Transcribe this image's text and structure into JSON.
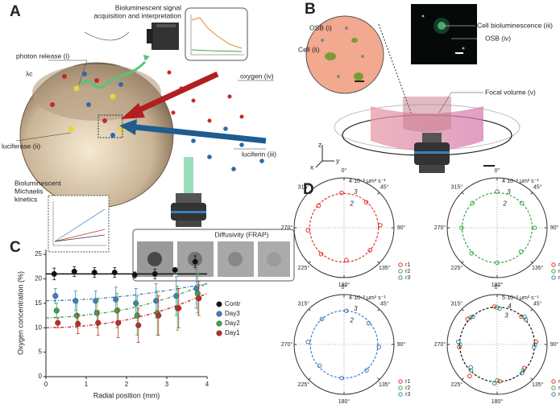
{
  "panel_a": {
    "label": "A",
    "signal_lines": [
      "Bioluminescent signal",
      "acquisition and interpretation"
    ],
    "photon": "photon release (i)",
    "oxygen": "oxygen (iv)",
    "lambda": "λc",
    "luciferase": "luciferase (ii)",
    "luciferin": "luciferin (iii)",
    "kinetics_lines": [
      "Bioluminescent",
      "Michaelis",
      "kinetics"
    ],
    "frap": "Diffusivity (FRAP)"
  },
  "panel_b": {
    "label": "B",
    "osb_i": "OSB (i)",
    "cell": "Cell (ii)",
    "cell_biolum": "Cell bioluminescence (iii)",
    "osb_iv": "OSB (iv)",
    "focal": "Focal volume (v)",
    "axes": [
      "z",
      "y",
      "x"
    ]
  },
  "chart_data": [
    {
      "type": "scatter",
      "label": "C",
      "xlabel": "Radial position (mm)",
      "ylabel": "Oxygen concentration (%)",
      "xlim": [
        0,
        4
      ],
      "xticks": [
        0,
        1,
        2,
        3,
        4
      ],
      "ylim": [
        0,
        26
      ],
      "yticks": [
        0,
        5,
        10,
        15,
        20,
        25
      ],
      "legend": "right",
      "x": [
        0.25,
        0.75,
        1.25,
        1.75,
        2.25,
        2.75,
        3.25,
        3.75
      ],
      "series": [
        {
          "name": "Contr",
          "color": "#111111",
          "values": [
            21,
            21.5,
            21.3,
            21.3,
            20.8,
            21,
            21.8,
            23.5
          ],
          "errors": [
            1.2,
            1,
            1,
            1,
            0.6,
            1,
            0.5,
            1.2
          ]
        },
        {
          "name": "Day3",
          "color": "#3b7fc4",
          "values": [
            16.5,
            15.5,
            15.5,
            15.8,
            15,
            15.5,
            16.5,
            18
          ],
          "errors": [
            1.5,
            2,
            2,
            2.5,
            3,
            3.5,
            4,
            4
          ]
        },
        {
          "name": "Day2",
          "color": "#3aa845",
          "values": [
            13.5,
            12.5,
            13,
            13.5,
            12.5,
            13,
            14,
            17
          ],
          "errors": [
            1.5,
            2.5,
            3,
            3.5,
            4,
            4.5,
            4.5,
            4
          ]
        },
        {
          "name": "Day1",
          "color": "#c62828",
          "values": [
            11,
            10.8,
            11,
            11,
            10.5,
            12.5,
            14,
            16
          ],
          "errors": [
            1,
            2,
            2.5,
            3,
            3.5,
            4,
            4,
            3.5
          ]
        }
      ],
      "reference_line": 21,
      "fit_x": [
        0,
        0.5,
        1,
        1.5,
        2,
        2.5,
        3,
        3.5,
        4
      ],
      "fits": [
        {
          "color": "#3b7fc4",
          "values": [
            15.5,
            15.6,
            15.8,
            16.1,
            16.5,
            17,
            17.6,
            18.3,
            19
          ]
        },
        {
          "color": "#3aa845",
          "values": [
            12,
            12.2,
            12.6,
            13.1,
            13.8,
            14.8,
            16,
            17.4,
            19
          ]
        },
        {
          "color": "#c62828",
          "values": [
            10,
            10.1,
            10.4,
            10.9,
            11.6,
            12.6,
            13.8,
            15.3,
            17
          ]
        }
      ]
    },
    {
      "type": "polar",
      "label": "D",
      "angle_labels": [
        "0°",
        "45°",
        "90°",
        "135°",
        "180°",
        "225°",
        "270°",
        "315°"
      ],
      "angles": [
        0,
        45,
        90,
        135,
        180,
        225,
        270,
        315
      ],
      "rlim": [
        0,
        4
      ],
      "rticks": [
        2,
        3,
        {
          "value": 4,
          "label": "4·10⁻² μm² s⁻¹"
        }
      ],
      "fit_r": 2.75,
      "fit_color": "#e0302a",
      "series": [
        {
          "name": "r1",
          "color": "#e0302a",
          "values": [
            2.8,
            2.7,
            2.9,
            2.75,
            2.6,
            2.8,
            2.9,
            2.7
          ]
        },
        {
          "name": "r2",
          "color": "#3aa845",
          "values": [
            null,
            null,
            null,
            null,
            null,
            null,
            null,
            null
          ]
        },
        {
          "name": "r3",
          "color": "#3b7fc4",
          "values": [
            null,
            null,
            null,
            null,
            null,
            null,
            null,
            null
          ]
        }
      ]
    },
    {
      "type": "polar",
      "angle_labels": [
        "0°",
        "45°",
        "90°",
        "135°",
        "180°",
        "225°",
        "270°",
        "315°"
      ],
      "angles": [
        0,
        45,
        90,
        135,
        180,
        225,
        270,
        315
      ],
      "rlim": [
        0,
        4
      ],
      "rticks": [
        2,
        3,
        {
          "value": 4,
          "label": "4·10⁻² μm² s⁻¹"
        }
      ],
      "fit_r": 2.8,
      "fit_color": "#3aa845",
      "series": [
        {
          "name": "r1",
          "color": "#e0302a",
          "values": [
            null,
            null,
            null,
            null,
            null,
            null,
            null,
            null
          ]
        },
        {
          "name": "r2",
          "color": "#3aa845",
          "values": [
            2.9,
            2.8,
            3.0,
            2.7,
            2.8,
            2.9,
            2.85,
            2.8
          ]
        },
        {
          "name": "r3",
          "color": "#3b7fc4",
          "values": [
            null,
            null,
            null,
            null,
            null,
            null,
            null,
            null
          ]
        }
      ]
    },
    {
      "type": "polar",
      "angle_labels": [
        "0°",
        "45°",
        "90°",
        "135°",
        "180°",
        "225°",
        "270°",
        "315°"
      ],
      "angles": [
        0,
        45,
        90,
        135,
        180,
        225,
        270,
        315
      ],
      "rlim": [
        0,
        4
      ],
      "rticks": [
        2,
        3,
        {
          "value": 4,
          "label": "4·10⁻² μm² s⁻¹"
        }
      ],
      "fit_r": 2.7,
      "fit_color": "#3b7fc4",
      "series": [
        {
          "name": "r1",
          "color": "#e0302a",
          "values": [
            null,
            null,
            null,
            null,
            null,
            null,
            null,
            null
          ]
        },
        {
          "name": "r2",
          "color": "#3aa845",
          "values": [
            null,
            null,
            null,
            null,
            null,
            null,
            null,
            null
          ]
        },
        {
          "name": "r3",
          "color": "#3b7fc4",
          "values": [
            2.7,
            2.6,
            2.8,
            2.75,
            2.7,
            2.6,
            2.9,
            2.7
          ]
        }
      ]
    },
    {
      "type": "polar",
      "angle_labels": [
        "0°",
        "45°",
        "90°",
        "135°",
        "180°",
        "225°",
        "270°",
        "315°"
      ],
      "angles": [
        0,
        45,
        90,
        135,
        180,
        225,
        270,
        315
      ],
      "rlim": [
        0,
        5
      ],
      "rticks": [
        3,
        4,
        {
          "value": 5,
          "label": "5·10⁻² μm² s⁻¹"
        }
      ],
      "fit_r": 3.75,
      "fit_color": "#111111",
      "series": [
        {
          "name": "r1",
          "color": "#e0302a",
          "values": [
            3.8,
            3.7,
            3.9,
            3.6,
            3.7,
            4.2,
            3.8,
            3.9
          ]
        },
        {
          "name": "r2",
          "color": "#3aa845",
          "values": [
            3.7,
            3.9,
            3.8,
            3.7,
            3.6,
            3.7,
            3.7,
            3.8
          ]
        },
        {
          "name": "r3",
          "color": "#3b7fc4",
          "values": [
            3.6,
            3.8,
            3.7,
            3.8,
            3.9,
            3.5,
            3.9,
            3.7
          ]
        }
      ]
    }
  ]
}
